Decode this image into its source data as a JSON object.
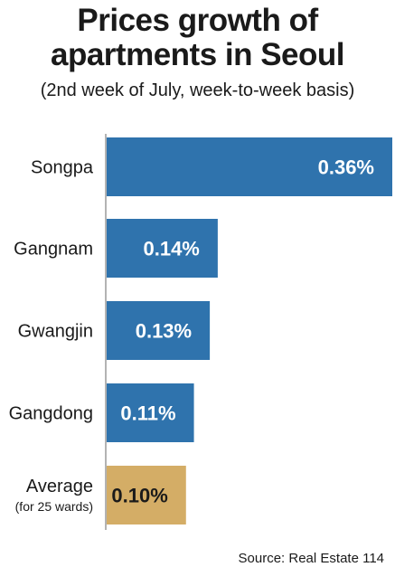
{
  "chart_data": {
    "type": "bar",
    "orientation": "horizontal",
    "title": [
      "Prices growth of",
      "apartments in Seoul"
    ],
    "subtitle": "(2nd week of July, week-to-week basis)",
    "categories": [
      "Songpa",
      "Gangnam",
      "Gwangjin",
      "Gangdong",
      "Average"
    ],
    "category_sublabels": [
      "",
      "",
      "",
      "",
      "(for 25 wards)"
    ],
    "values": [
      0.36,
      0.14,
      0.13,
      0.11,
      0.1
    ],
    "value_labels": [
      "0.36%",
      "0.14%",
      "0.13%",
      "0.11%",
      "0.10%"
    ],
    "unit": "%",
    "xlim": [
      0,
      0.36
    ],
    "grid": false,
    "colors": {
      "bar": "#2f73ad",
      "highlight": "#d4ad66",
      "value_text_on_bar": "#ffffff",
      "value_text_on_highlight": "#1a1a1a",
      "axis": "#9a9a9a"
    },
    "highlight_index": 4
  },
  "source": "Source: Real Estate 114"
}
